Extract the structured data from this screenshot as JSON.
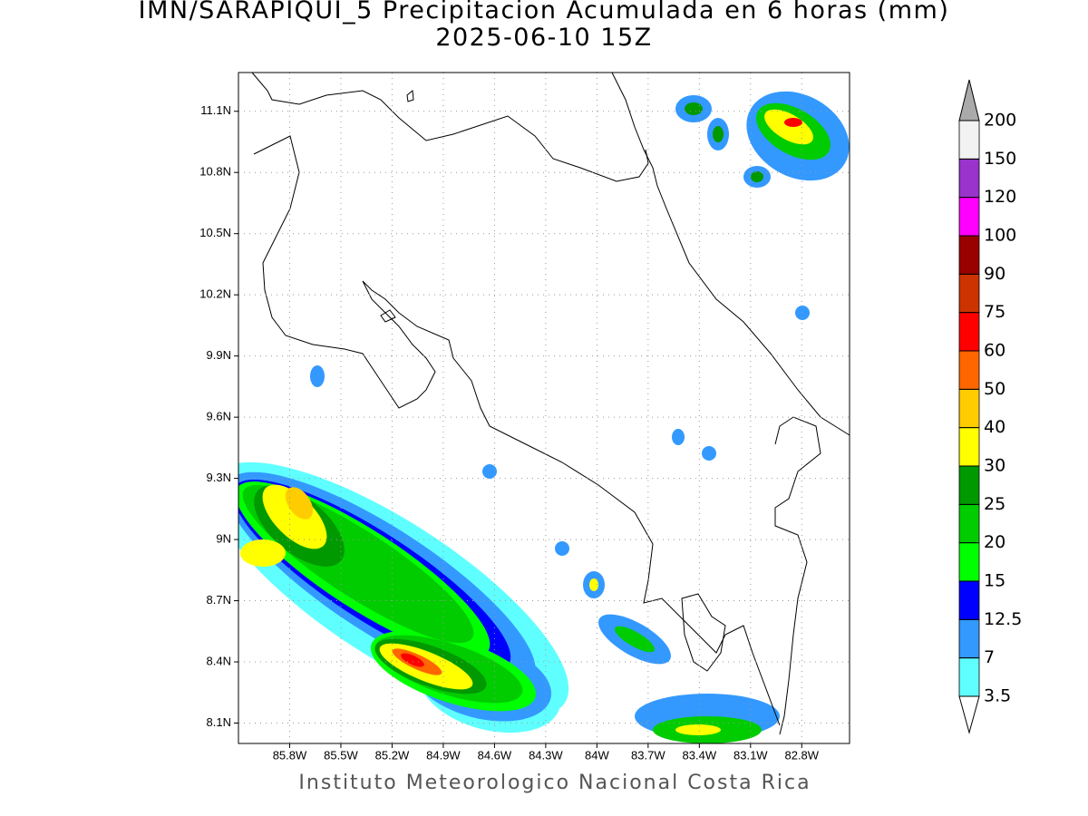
{
  "chart_data": {
    "type": "map",
    "title": "IMN/SARAPIQUI_5 Precipitacion Acumulada en 6 horas (mm)",
    "subtitle": "2025-06-10 15Z",
    "footer": "Instituto Meteorologico Nacional Costa Rica",
    "xlim": [
      -86.1,
      -82.52
    ],
    "ylim": [
      8.0,
      11.29
    ],
    "grid": true,
    "xticks": [
      {
        "value": -85.8,
        "label": "85.8W"
      },
      {
        "value": -85.5,
        "label": "85.5W"
      },
      {
        "value": -85.2,
        "label": "85.2W"
      },
      {
        "value": -84.9,
        "label": "84.9W"
      },
      {
        "value": -84.6,
        "label": "84.6W"
      },
      {
        "value": -84.3,
        "label": "84.3W"
      },
      {
        "value": -84.0,
        "label": "84W"
      },
      {
        "value": -83.7,
        "label": "83.7W"
      },
      {
        "value": -83.4,
        "label": "83.4W"
      },
      {
        "value": -83.1,
        "label": "83.1W"
      },
      {
        "value": -82.8,
        "label": "82.8W"
      }
    ],
    "yticks": [
      {
        "value": 8.1,
        "label": "8.1N"
      },
      {
        "value": 8.4,
        "label": "8.4N"
      },
      {
        "value": 8.7,
        "label": "8.7N"
      },
      {
        "value": 9.0,
        "label": "9N"
      },
      {
        "value": 9.3,
        "label": "9.3N"
      },
      {
        "value": 9.6,
        "label": "9.6N"
      },
      {
        "value": 9.9,
        "label": "9.9N"
      },
      {
        "value": 10.2,
        "label": "10.2N"
      },
      {
        "value": 10.5,
        "label": "10.5N"
      },
      {
        "value": 10.8,
        "label": "10.8N"
      },
      {
        "value": 11.1,
        "label": "11.1N"
      }
    ],
    "colorbar": {
      "levels": [
        3.5,
        7,
        12.5,
        15,
        20,
        25,
        30,
        40,
        50,
        60,
        75,
        90,
        100,
        120,
        150,
        200
      ],
      "colors": [
        "#60ffff",
        "#3399ff",
        "#0000ff",
        "#00ff00",
        "#00cc00",
        "#009900",
        "#ffff00",
        "#ffcc00",
        "#ff6600",
        "#ff0000",
        "#cc3300",
        "#990000",
        "#ff00ff",
        "#9933cc",
        "#f2f2f2"
      ],
      "under_color": "#ffffff",
      "over_color": "#aaaaaa"
    }
  }
}
